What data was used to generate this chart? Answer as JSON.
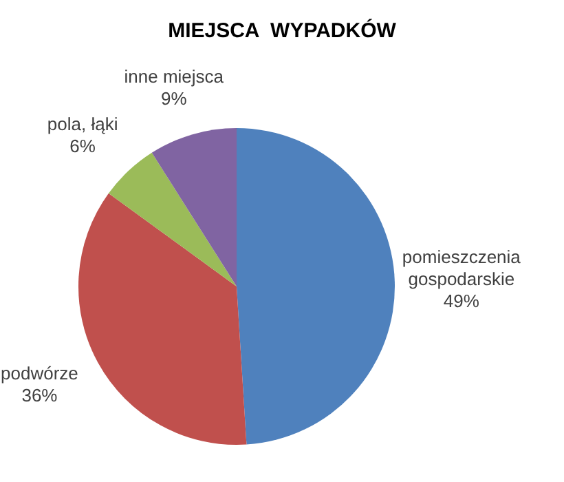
{
  "chart_data": {
    "type": "pie",
    "title": "MIEJSCA  WYPADKÓW",
    "categories": [
      "pomieszczenia gospodarskie",
      "podwórze",
      "pola, łąki",
      "inne miejsca"
    ],
    "values": [
      49,
      36,
      6,
      9
    ],
    "value_labels": [
      "49%",
      "36%",
      "6%",
      "9%"
    ],
    "colors": [
      "#4f81bd",
      "#c0504d",
      "#9bbb59",
      "#8064a2"
    ],
    "legend": false
  }
}
